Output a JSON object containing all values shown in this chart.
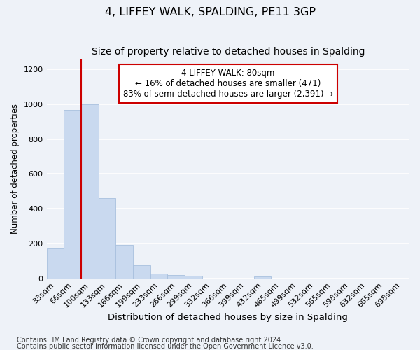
{
  "title": "4, LIFFEY WALK, SPALDING, PE11 3GP",
  "subtitle": "Size of property relative to detached houses in Spalding",
  "xlabel": "Distribution of detached houses by size in Spalding",
  "ylabel": "Number of detached properties",
  "categories": [
    "33sqm",
    "66sqm",
    "100sqm",
    "133sqm",
    "166sqm",
    "199sqm",
    "233sqm",
    "266sqm",
    "299sqm",
    "332sqm",
    "366sqm",
    "399sqm",
    "432sqm",
    "465sqm",
    "499sqm",
    "532sqm",
    "565sqm",
    "598sqm",
    "632sqm",
    "665sqm",
    "698sqm"
  ],
  "values": [
    170,
    965,
    1000,
    460,
    190,
    75,
    25,
    20,
    15,
    0,
    0,
    0,
    10,
    0,
    0,
    0,
    0,
    0,
    0,
    0,
    0
  ],
  "bar_color": "#c9d9ef",
  "bar_edge_color": "#a8c0de",
  "property_line_x": 1.5,
  "annotation_line1": "4 LIFFEY WALK: 80sqm",
  "annotation_line2": "← 16% of detached houses are smaller (471)",
  "annotation_line3": "83% of semi-detached houses are larger (2,391) →",
  "annotation_box_facecolor": "#ffffff",
  "annotation_box_edgecolor": "#cc0000",
  "red_line_color": "#cc0000",
  "ylim": [
    0,
    1260
  ],
  "yticks": [
    0,
    200,
    400,
    600,
    800,
    1000,
    1200
  ],
  "footnote1": "Contains HM Land Registry data © Crown copyright and database right 2024.",
  "footnote2": "Contains public sector information licensed under the Open Government Licence v3.0.",
  "background_color": "#eef2f8",
  "grid_color": "#ffffff",
  "title_fontsize": 11.5,
  "subtitle_fontsize": 10,
  "xlabel_fontsize": 9.5,
  "ylabel_fontsize": 8.5,
  "tick_fontsize": 8,
  "annot_fontsize": 8.5,
  "footnote_fontsize": 7
}
